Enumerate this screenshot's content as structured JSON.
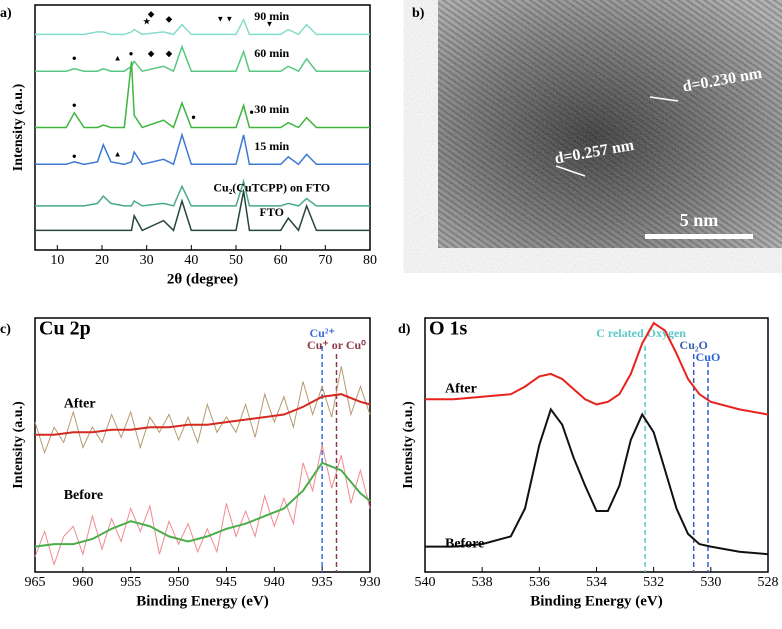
{
  "chart_data": [
    {
      "type": "line",
      "panel": "a)",
      "xlabel": "2θ (degree)",
      "ylabel": "Intensity (a.u.)",
      "xlim": [
        5,
        80
      ],
      "ylim": [
        0,
        100
      ],
      "xticks": [
        10,
        20,
        30,
        40,
        50,
        60,
        70,
        80
      ],
      "x": [
        5,
        12,
        13.8,
        16,
        19,
        20.3,
        22,
        25,
        26.6,
        27.2,
        29,
        33.8,
        36,
        37.9,
        40,
        50,
        51.7,
        53,
        60,
        61.7,
        64,
        65.8,
        68,
        80
      ],
      "series": [
        {
          "name": "90 min",
          "color": "#86dccb",
          "values": [
            88,
            88,
            88,
            88,
            89,
            89,
            88,
            88,
            89,
            90,
            88,
            89,
            88,
            92,
            88,
            88,
            94,
            88,
            88,
            90,
            88,
            92,
            88,
            88
          ]
        },
        {
          "name": "60 min",
          "color": "#58c780",
          "values": [
            73,
            73,
            74,
            73,
            73,
            74,
            73,
            73,
            75,
            77,
            73,
            75,
            73,
            83,
            73,
            73,
            81,
            73,
            73,
            75,
            73,
            78,
            73,
            73
          ]
        },
        {
          "name": "30 min",
          "color": "#3fb53f",
          "values": [
            50,
            50,
            56,
            50,
            50,
            51,
            50,
            50,
            77,
            55,
            50,
            53,
            50,
            60,
            50,
            50,
            59,
            50,
            50,
            52,
            50,
            54,
            50,
            50
          ]
        },
        {
          "name": "15 min",
          "color": "#3b7ad2",
          "values": [
            35,
            35,
            36,
            35,
            36,
            43,
            36,
            35,
            36,
            40,
            35,
            37,
            35,
            47,
            35,
            35,
            47,
            35,
            35,
            38,
            35,
            39,
            35,
            35
          ]
        },
        {
          "name": "Cu₂(CuTCPP) on FTO",
          "color": "#4aa88e",
          "values": [
            18,
            18,
            18,
            18,
            19,
            22,
            19,
            18,
            18,
            20,
            18,
            19,
            18,
            26,
            18,
            18,
            28,
            18,
            18,
            19,
            18,
            21,
            18,
            18
          ]
        },
        {
          "name": "FTO",
          "color": "#27463a",
          "values": [
            8,
            8,
            8,
            8,
            8,
            8,
            8,
            8,
            8,
            14,
            8,
            12,
            8,
            20,
            8,
            8,
            24,
            8,
            8,
            13,
            8,
            18,
            8,
            8
          ]
        }
      ],
      "annotations": [
        {
          "text": "★",
          "x": 30,
          "y": 93
        },
        {
          "text": "◆",
          "x": 31,
          "y": 96
        },
        {
          "text": "◆",
          "x": 35,
          "y": 94
        },
        {
          "text": "▼",
          "x": 46.5,
          "y": 94
        },
        {
          "text": "▼",
          "x": 48.5,
          "y": 94
        },
        {
          "text": "▼",
          "x": 57.5,
          "y": 92
        },
        {
          "text": "●",
          "x": 13.8,
          "y": 78
        },
        {
          "text": "▲",
          "x": 23.5,
          "y": 78
        },
        {
          "text": "◆",
          "x": 31,
          "y": 80
        },
        {
          "text": "◆",
          "x": 35,
          "y": 80
        },
        {
          "text": "●",
          "x": 13.8,
          "y": 59
        },
        {
          "text": "●",
          "x": 26.5,
          "y": 80
        },
        {
          "text": "●",
          "x": 40.5,
          "y": 54
        },
        {
          "text": "●",
          "x": 53.5,
          "y": 56
        },
        {
          "text": "●",
          "x": 13.8,
          "y": 38
        },
        {
          "text": "▲",
          "x": 23.5,
          "y": 39
        }
      ]
    },
    {
      "type": "image",
      "panel": "b)",
      "labels": [
        "d=0.230 nm",
        "d=0.257 nm",
        "5 nm"
      ]
    },
    {
      "type": "line",
      "panel": "c)",
      "title": "Cu 2p",
      "xlabel": "Binding Energy (eV)",
      "ylabel": "Intensity (a.u.)",
      "xlim": [
        965,
        930
      ],
      "ylim": [
        0,
        100
      ],
      "xticks": [
        965,
        960,
        955,
        950,
        945,
        940,
        935,
        930
      ],
      "x": [
        965,
        963,
        961,
        959,
        957,
        955,
        953,
        951,
        949,
        947,
        945,
        943,
        941,
        939,
        937,
        935,
        933,
        931,
        930
      ],
      "series": [
        {
          "color": "#b59a6e",
          "width": 1,
          "x": [
            965,
            964,
            963,
            962,
            961,
            960,
            959,
            958,
            957,
            956,
            955,
            954,
            953,
            952,
            951,
            950,
            949,
            948,
            947,
            946,
            945,
            944,
            943,
            942,
            941,
            940,
            939,
            938,
            937,
            936,
            935,
            934,
            933,
            932,
            931,
            930
          ],
          "values": [
            59,
            47,
            57,
            51,
            63,
            49,
            57,
            51,
            62,
            53,
            63,
            49,
            61,
            55,
            62,
            52,
            61,
            51,
            66,
            55,
            61,
            55,
            66,
            53,
            70,
            59,
            69,
            57,
            75,
            62,
            73,
            61,
            81,
            62,
            73,
            62
          ]
        },
        {
          "color": "#d42a20",
          "width": 2,
          "values": [
            54,
            54,
            55,
            55,
            56,
            56,
            57,
            57,
            58,
            58,
            59,
            60,
            61,
            62,
            65,
            69,
            70,
            67,
            66
          ]
        },
        {
          "color": "#f08a90",
          "width": 1,
          "x": [
            965,
            964,
            963,
            962,
            961,
            960,
            959,
            958,
            957,
            956,
            955,
            954,
            953,
            952,
            951,
            950,
            949,
            948,
            947,
            946,
            945,
            944,
            943,
            942,
            941,
            940,
            939,
            938,
            937,
            936,
            935,
            934,
            933,
            932,
            931,
            930
          ],
          "values": [
            6,
            16,
            3,
            14,
            18,
            7,
            22,
            9,
            21,
            12,
            25,
            16,
            26,
            7,
            20,
            11,
            19,
            8,
            17,
            8,
            27,
            14,
            24,
            14,
            30,
            18,
            29,
            19,
            43,
            32,
            50,
            33,
            46,
            27,
            40,
            25
          ]
        },
        {
          "color": "#4aaf4a",
          "width": 2,
          "values": [
            10,
            11,
            11,
            13,
            17,
            20,
            18,
            14,
            12,
            14,
            17,
            19,
            22,
            25,
            32,
            43,
            40,
            31,
            28
          ]
        }
      ],
      "vlines": [
        {
          "x": 935,
          "label": "Cu²⁺",
          "color": "#3a6fd8"
        },
        {
          "x": 933.5,
          "label": "Cu⁺ or Cu⁰",
          "color": "#8b3a4a"
        }
      ],
      "annotations": [
        {
          "text": "After",
          "x": 962,
          "y": 66
        },
        {
          "text": "Before",
          "x": 962,
          "y": 30
        }
      ]
    },
    {
      "type": "line",
      "panel": "d)",
      "title": "O 1s",
      "xlabel": "Binding Energy (eV)",
      "ylabel": "Intensity (a.u.)",
      "xlim": [
        540,
        528
      ],
      "ylim": [
        0,
        100
      ],
      "xticks": [
        540,
        538,
        536,
        534,
        532,
        530,
        528
      ],
      "x": [
        540,
        539,
        538,
        537,
        536.5,
        536,
        535.6,
        535.2,
        534.8,
        534.4,
        534,
        533.6,
        533.2,
        532.8,
        532.4,
        532,
        531.6,
        531.2,
        530.8,
        530.4,
        530,
        529,
        528
      ],
      "series": [
        {
          "color": "#e8221c",
          "width": 2,
          "values": [
            68,
            68,
            69,
            70,
            73,
            77,
            78,
            76,
            72,
            68,
            66,
            67,
            70,
            78,
            90,
            98,
            95,
            86,
            76,
            70,
            67,
            64,
            62
          ]
        },
        {
          "color": "#111111",
          "width": 2,
          "values": [
            10,
            10,
            11,
            14,
            25,
            50,
            64,
            58,
            45,
            34,
            24,
            24,
            34,
            52,
            62,
            55,
            40,
            25,
            15,
            11,
            10,
            8,
            7
          ]
        }
      ],
      "vlines": [
        {
          "x": 532.3,
          "label": "C related Oxygen",
          "color": "#5cc8c8"
        },
        {
          "x": 530.6,
          "label": "Cu₂O",
          "color": "#3a5fb0"
        },
        {
          "x": 530.1,
          "label": "CuO",
          "color": "#2a60d8"
        }
      ],
      "annotations": [
        {
          "text": "After",
          "x": 539.3,
          "y": 72
        },
        {
          "text": "Before",
          "x": 539.3,
          "y": 11
        }
      ]
    }
  ]
}
